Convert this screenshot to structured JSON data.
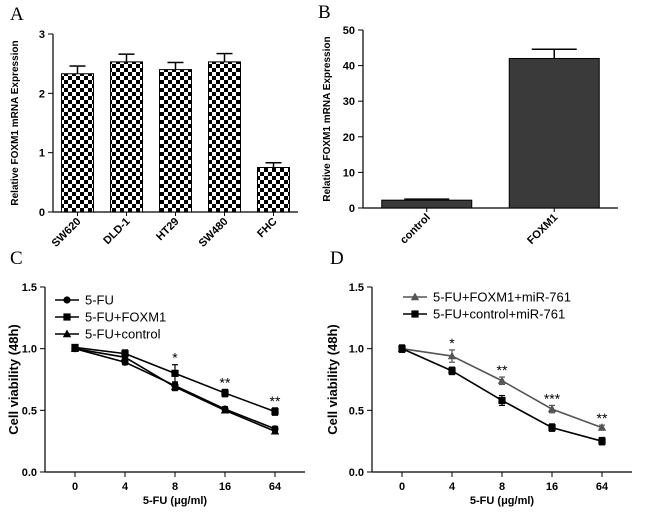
{
  "chart_data": [
    {
      "panel": "A",
      "type": "bar",
      "categories": [
        "SW620",
        "DLD-1",
        "HT29",
        "SW480",
        "FHC"
      ],
      "values": [
        2.33,
        2.53,
        2.4,
        2.53,
        0.75
      ],
      "errors": [
        0.13,
        0.13,
        0.12,
        0.14,
        0.08
      ],
      "ylabel": "Relative FOXM1 mRNA Expression",
      "xlabel": "",
      "ylim": [
        0,
        3
      ],
      "yticks": [
        0,
        1,
        2,
        3
      ],
      "bar_fill": "checkerboard"
    },
    {
      "panel": "B",
      "type": "bar",
      "categories": [
        "control",
        "FOXM1"
      ],
      "values": [
        2.2,
        42.0
      ],
      "errors": [
        0.3,
        2.6
      ],
      "ylabel": "Relative FOXM1 mRNA Expression",
      "xlabel": "",
      "ylim": [
        0,
        50
      ],
      "yticks": [
        0,
        10,
        20,
        30,
        40,
        50
      ],
      "bar_color": "#3a3a3a"
    },
    {
      "panel": "C",
      "type": "line",
      "categories": [
        "0",
        "4",
        "8",
        "16",
        "64"
      ],
      "series": [
        {
          "name": "5-FU",
          "marker": "circle",
          "values": [
            1.0,
            0.89,
            0.7,
            0.51,
            0.35
          ],
          "errors": [
            0.02,
            0.02,
            0.03,
            0.02,
            0.02
          ]
        },
        {
          "name": "5-FU+FOXM1",
          "marker": "square",
          "values": [
            1.01,
            0.96,
            0.8,
            0.64,
            0.49
          ],
          "errors": [
            0.02,
            0.03,
            0.07,
            0.03,
            0.03
          ]
        },
        {
          "name": "5-FU+control",
          "marker": "triangle",
          "values": [
            1.0,
            0.93,
            0.69,
            0.5,
            0.33
          ],
          "errors": [
            0.02,
            0.02,
            0.03,
            0.02,
            0.02
          ]
        }
      ],
      "annotations": [
        {
          "category": "8",
          "text": "*"
        },
        {
          "category": "16",
          "text": "**"
        },
        {
          "category": "64",
          "text": "**"
        }
      ],
      "ylabel": "Cell viability (48h)",
      "xlabel": "5-FU (μg/ml)",
      "ylim": [
        0,
        1.5
      ],
      "yticks": [
        0.0,
        0.5,
        1.0,
        1.5
      ],
      "legend_position": "top-left"
    },
    {
      "panel": "D",
      "type": "line",
      "categories": [
        "0",
        "4",
        "8",
        "16",
        "64"
      ],
      "series": [
        {
          "name": "5-FU+FOXM1+miR-761",
          "marker": "triangle",
          "color": "#555555",
          "values": [
            1.0,
            0.94,
            0.74,
            0.51,
            0.36
          ],
          "errors": [
            0.03,
            0.05,
            0.03,
            0.03,
            0.02
          ]
        },
        {
          "name": "5-FU+control+miR-761",
          "marker": "square",
          "color": "#000000",
          "values": [
            1.0,
            0.82,
            0.58,
            0.36,
            0.25
          ],
          "errors": [
            0.03,
            0.03,
            0.04,
            0.03,
            0.03
          ]
        }
      ],
      "annotations": [
        {
          "category": "4",
          "text": "*"
        },
        {
          "category": "8",
          "text": "**"
        },
        {
          "category": "16",
          "text": "***"
        },
        {
          "category": "64",
          "text": "**"
        }
      ],
      "ylabel": "Cell viability (48h)",
      "xlabel": "5-FU (μg/ml)",
      "ylim": [
        0,
        1.5
      ],
      "yticks": [
        0.0,
        0.5,
        1.0,
        1.5
      ],
      "legend_position": "top-left"
    }
  ]
}
